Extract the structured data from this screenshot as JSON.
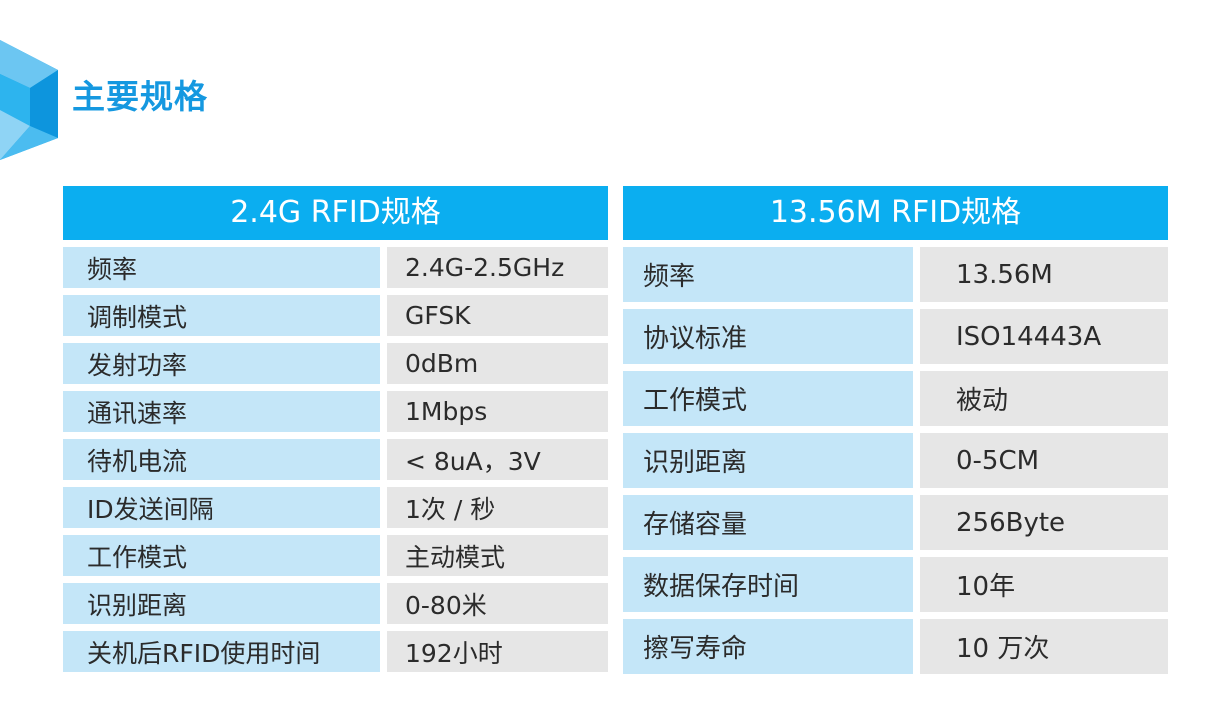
{
  "page": {
    "title": "主要规格"
  },
  "colors": {
    "accent_blue": "#0baef0",
    "title_blue": "#1598e0",
    "key_cell": "#c4e6f8",
    "value_cell": "#e6e6e6"
  },
  "table_24g": {
    "header": "2.4G RFID规格",
    "rows": [
      {
        "key": "频率",
        "value": "2.4G-2.5GHz"
      },
      {
        "key": "调制模式",
        "value": "GFSK"
      },
      {
        "key": "发射功率",
        "value": "0dBm"
      },
      {
        "key": "通讯速率",
        "value": "1Mbps"
      },
      {
        "key": "待机电流",
        "value": "< 8uA，3V"
      },
      {
        "key": "ID发送间隔",
        "value": "1次 / 秒"
      },
      {
        "key": "工作模式",
        "value": "主动模式"
      },
      {
        "key": "识别距离",
        "value": "0-80米"
      },
      {
        "key": "关机后RFID使用时间",
        "value": "192小时"
      }
    ]
  },
  "table_1356m": {
    "header": "13.56M RFID规格",
    "rows": [
      {
        "key": "频率",
        "value": "13.56M"
      },
      {
        "key": "协议标准",
        "value": "ISO14443A"
      },
      {
        "key": "工作模式",
        "value": "被动"
      },
      {
        "key": "识别距离",
        "value": "0-5CM"
      },
      {
        "key": "存储容量",
        "value": "256Byte"
      },
      {
        "key": "数据保存时间",
        "value": "10年"
      },
      {
        "key": "擦写寿命",
        "value": "10 万次"
      }
    ]
  }
}
